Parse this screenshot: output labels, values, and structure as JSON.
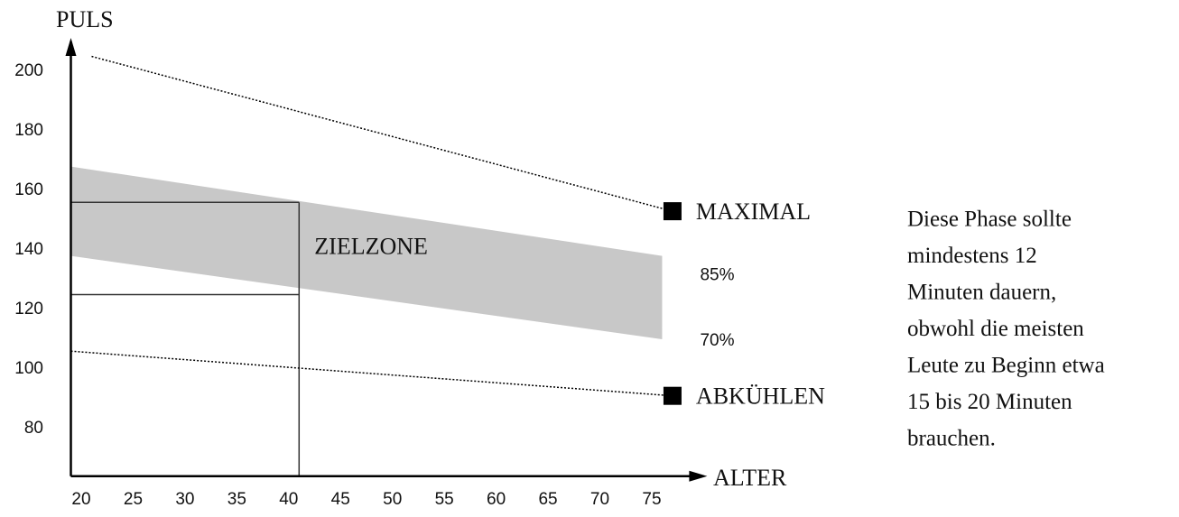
{
  "chart_data": {
    "type": "line",
    "y_label": "PULS",
    "x_label": "ALTER",
    "xlim": [
      19,
      80
    ],
    "ylim": [
      64,
      210
    ],
    "xticks": [
      20,
      25,
      30,
      35,
      40,
      45,
      50,
      55,
      60,
      65,
      70,
      75
    ],
    "yticks": [
      80,
      100,
      120,
      140,
      160,
      180,
      200
    ],
    "series": [
      {
        "name": "MAXIMAL",
        "color": "#000000",
        "x": [
          21,
          77
        ],
        "values": [
          205,
          153
        ]
      },
      {
        "name": "ABKÜHLEN",
        "color": "#000000",
        "x": [
          19,
          77
        ],
        "values": [
          106,
          91
        ]
      }
    ],
    "band": {
      "color": "#c8c8c8",
      "x": [
        19,
        76
      ],
      "upper": [
        168,
        138
      ],
      "lower": [
        138,
        110
      ],
      "upper_label": "85%",
      "lower_label": "70%"
    },
    "target_zone": {
      "label": "ZIELZONE",
      "age": 41,
      "upper": 156,
      "lower": 125
    }
  },
  "note": {
    "lines": [
      "Diese Phase sollte",
      "mindestens 12",
      "Minuten dauern,",
      "obwohl die meisten",
      "Leute zu Beginn etwa",
      "15 bis 20 Minuten",
      "brauchen."
    ]
  }
}
